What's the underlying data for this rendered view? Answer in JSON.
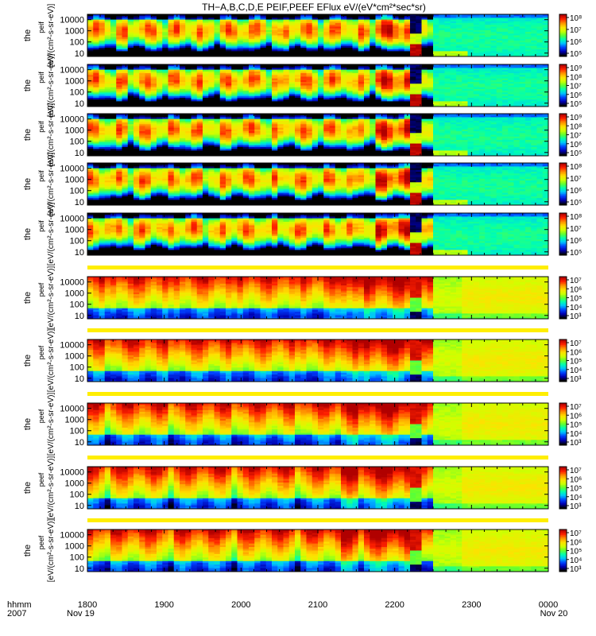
{
  "title": "TH−A,B,C,D,E  PEIF,PEEF  EFlux  eV/(eV*cm²*sec*sr)",
  "time_axis": {
    "start_hhmm": "1800",
    "end_hhmm": "0000",
    "tick_labels": [
      "1800",
      "1900",
      "2000",
      "2100",
      "2200",
      "2300",
      "0000"
    ],
    "date_start": "Nov 19",
    "date_end": "Nov 20",
    "left_label_1": "hhmm",
    "left_label_2": "2007"
  },
  "colors": {
    "data_gap": "#ffee00",
    "background": "#ffffff",
    "colormap": [
      "#000000",
      "#0000b0",
      "#0040ff",
      "#00c0ff",
      "#00ffb0",
      "#60ff30",
      "#d0ff00",
      "#ffe000",
      "#ff9000",
      "#ff2000",
      "#b00000"
    ]
  },
  "chart_data": [
    {
      "type": "heatmap",
      "species": "ion",
      "ylabel": "the peif",
      "units_label": "[eV/(cm²-s-sr-eV)]",
      "ylim": [
        5,
        30000
      ],
      "yscale": "log",
      "yticks": [
        "10",
        "100",
        "1000",
        "10000"
      ],
      "colorbar_ticks": [
        "10⁵",
        "10⁶",
        "10⁷",
        "10⁸"
      ]
    },
    {
      "type": "heatmap",
      "species": "ion",
      "ylabel": "the peif",
      "units_label": "[eV/(cm²-s-sr-eV)]",
      "ylim": [
        5,
        30000
      ],
      "yscale": "log",
      "yticks": [
        "10",
        "100",
        "1000",
        "10000"
      ],
      "colorbar_ticks": [
        "10⁵",
        "10⁶",
        "10⁷",
        "10⁸",
        "10⁹"
      ]
    },
    {
      "type": "heatmap",
      "species": "ion",
      "ylabel": "the peif",
      "units_label": "[eV/(cm²-s-sr-eV)]",
      "ylim": [
        5,
        30000
      ],
      "yscale": "log",
      "yticks": [
        "10",
        "100",
        "1000",
        "10000"
      ],
      "colorbar_ticks": [
        "10⁵",
        "10⁶",
        "10⁷",
        "10⁸",
        "10⁹"
      ]
    },
    {
      "type": "heatmap",
      "species": "ion",
      "ylabel": "the peif",
      "units_label": "[eV/(cm²-s-sr-eV)]",
      "ylim": [
        5,
        30000
      ],
      "yscale": "log",
      "yticks": [
        "10",
        "100",
        "1000",
        "10000"
      ],
      "colorbar_ticks": [
        "10⁵",
        "10⁶",
        "10⁷",
        "10⁸"
      ]
    },
    {
      "type": "heatmap",
      "species": "ion",
      "ylabel": "the peif",
      "units_label": "[eV/(cm²-s-sr-eV)]",
      "ylim": [
        5,
        30000
      ],
      "yscale": "log",
      "yticks": [
        "10",
        "100",
        "1000",
        "10000"
      ],
      "colorbar_ticks": [
        "10⁵",
        "10⁶",
        "10⁷",
        "10⁸"
      ]
    },
    {
      "type": "heatmap",
      "species": "electron",
      "ylabel": "the peef",
      "units_label": "[eV/(cm²-s-sr-eV)]",
      "ylim": [
        5,
        30000
      ],
      "yscale": "log",
      "yticks": [
        "10",
        "100",
        "1000",
        "10000"
      ],
      "colorbar_ticks": [
        "10³",
        "10⁴",
        "10⁵",
        "10⁶",
        "10⁷"
      ]
    },
    {
      "type": "heatmap",
      "species": "electron",
      "ylabel": "the peef",
      "units_label": "[eV/(cm²-s-sr-eV)]",
      "ylim": [
        5,
        30000
      ],
      "yscale": "log",
      "yticks": [
        "10",
        "100",
        "1000",
        "10000"
      ],
      "colorbar_ticks": [
        "10³",
        "10⁴",
        "10⁵",
        "10⁶",
        "10⁷"
      ]
    },
    {
      "type": "heatmap",
      "species": "electron",
      "ylabel": "the peef",
      "units_label": "[eV/(cm²-s-sr-eV)]",
      "ylim": [
        5,
        30000
      ],
      "yscale": "log",
      "yticks": [
        "10",
        "100",
        "1000",
        "10000"
      ],
      "colorbar_ticks": [
        "10³",
        "10⁴",
        "10⁵",
        "10⁶",
        "10⁷"
      ]
    },
    {
      "type": "heatmap",
      "species": "electron",
      "ylabel": "the peef",
      "units_label": "[eV/(cm²-s-sr-eV)]",
      "ylim": [
        5,
        30000
      ],
      "yscale": "log",
      "yticks": [
        "10",
        "100",
        "1000",
        "10000"
      ],
      "colorbar_ticks": [
        "10³",
        "10⁴",
        "10⁵",
        "10⁶",
        "10⁷"
      ]
    },
    {
      "type": "heatmap",
      "species": "electron",
      "ylabel": "the peef",
      "units_label": "[eV/(cm²-s-sr-eV)]",
      "ylim": [
        5,
        30000
      ],
      "yscale": "log",
      "yticks": [
        "10",
        "100",
        "1000",
        "10000"
      ],
      "colorbar_ticks": [
        "10³",
        "10⁴",
        "10⁵",
        "10⁶",
        "10⁷"
      ]
    }
  ]
}
